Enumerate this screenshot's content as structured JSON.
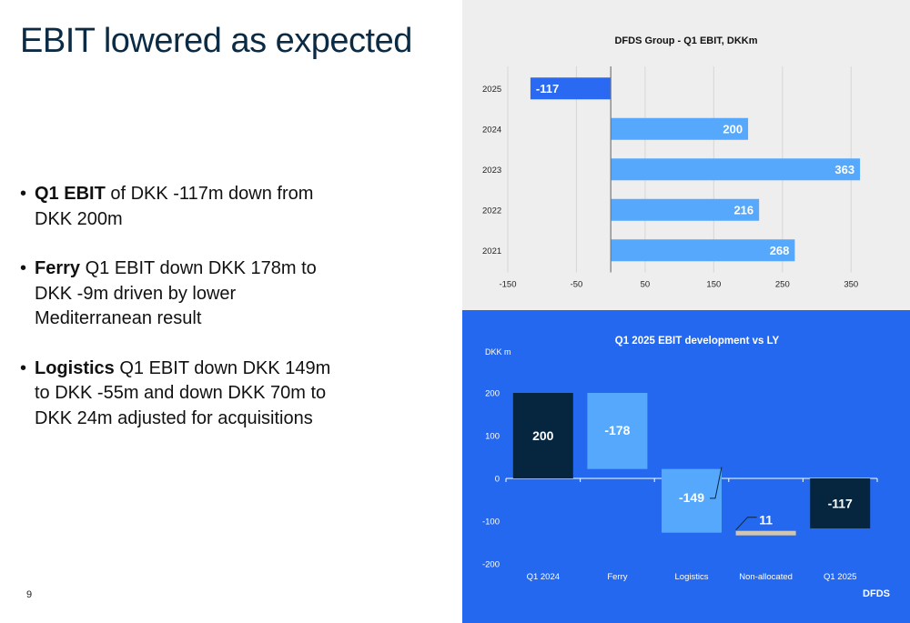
{
  "slide": {
    "title": "EBIT lowered as expected",
    "page_number": "9",
    "brand": "DFDS"
  },
  "bullets": [
    {
      "bold": "Q1 EBIT",
      "text": " of DKK -117m down from DKK 200m"
    },
    {
      "bold": "Ferry",
      "text": " Q1 EBIT down DKK 178m to DKK -9m driven by lower Mediterranean result"
    },
    {
      "bold": "Logistics",
      "text": " Q1 EBIT down DKK 149m to DKK -55m and down DKK 70m to DKK 24m adjusted for acquisitions"
    }
  ],
  "chart_data": [
    {
      "type": "bar",
      "orientation": "horizontal",
      "title": "DFDS Group - Q1 EBIT, DKKm",
      "categories": [
        "2025",
        "2024",
        "2023",
        "2022",
        "2021"
      ],
      "values": [
        -117,
        200,
        363,
        216,
        268
      ],
      "labels": [
        "-117",
        "200",
        "363",
        "216",
        "268"
      ],
      "xlim": [
        -150,
        400
      ],
      "xticks": [
        -150,
        -50,
        50,
        150,
        250,
        350
      ],
      "grid": true,
      "colors": {
        "negative": "#2a6af2",
        "positive": "#55a8fb",
        "axis": "#777777"
      }
    },
    {
      "type": "bar",
      "subtype": "waterfall",
      "title": "Q1 2025 EBIT development vs LY",
      "ylabel": "DKK m",
      "ylim": [
        -200,
        200
      ],
      "yticks": [
        -200,
        -100,
        0,
        100,
        200
      ],
      "categories": [
        "Q1 2024",
        "Ferry",
        "Logistics",
        "Non-allocated",
        "Q1 2025"
      ],
      "bars": [
        {
          "label": "200",
          "start": 0,
          "end": 200,
          "kind": "total"
        },
        {
          "label": "-178",
          "start": 200,
          "end": 22,
          "kind": "delta"
        },
        {
          "label": "-149",
          "start": 22,
          "end": -127,
          "kind": "delta"
        },
        {
          "label": "11",
          "start": -127,
          "end": -117,
          "kind": "delta-small"
        },
        {
          "label": "-117",
          "start": 0,
          "end": -117,
          "kind": "total"
        }
      ],
      "colors": {
        "total": "#062640",
        "delta": "#55a8fb",
        "small": "#cfc7b2",
        "text": "#ffffff"
      }
    }
  ]
}
